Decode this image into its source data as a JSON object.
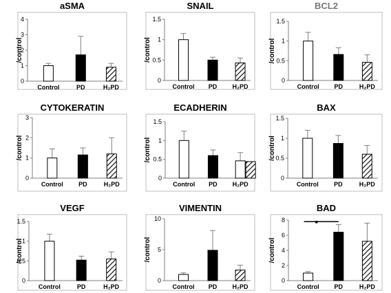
{
  "chart_data": [
    {
      "type": "bar",
      "title": "aSMA",
      "ylabel": "/control",
      "categories": [
        "Control",
        "PD",
        "H₂PD"
      ],
      "values": [
        1.0,
        1.7,
        0.9
      ],
      "errors": [
        0.15,
        1.2,
        0.25
      ],
      "yticks": [
        "0",
        "1",
        "2",
        "3",
        "4"
      ],
      "ylim": [
        0,
        4
      ],
      "fills": [
        "white",
        "black",
        "hatched"
      ],
      "significance": ""
    },
    {
      "type": "bar",
      "title": "SNAIL",
      "ylabel": "/control",
      "categories": [
        "Control",
        "PD",
        "H₂PD"
      ],
      "values": [
        1.0,
        0.5,
        0.43
      ],
      "errors": [
        0.15,
        0.07,
        0.12
      ],
      "yticks": [
        "0",
        "0.5",
        "1",
        "1.5"
      ],
      "ylim": [
        0,
        1.5
      ],
      "fills": [
        "white",
        "black",
        "hatched"
      ],
      "significance": ""
    },
    {
      "type": "bar",
      "title": "BCL2",
      "title_color": "#777777",
      "ylabel": "/control",
      "categories": [
        "Control",
        "PD",
        "H₂PD"
      ],
      "values": [
        1.0,
        0.66,
        0.46
      ],
      "errors": [
        0.22,
        0.17,
        0.19
      ],
      "yticks": [
        "0",
        "0.5",
        "1",
        "1.5"
      ],
      "ylim": [
        0,
        1.5
      ],
      "fills": [
        "white",
        "black",
        "hatched"
      ],
      "significance": ""
    },
    {
      "type": "bar",
      "title": "CYTOKERATIN",
      "ylabel": "/control",
      "categories": [
        "Control",
        "PD",
        "H₂PD"
      ],
      "values": [
        1.0,
        1.15,
        1.2
      ],
      "errors": [
        0.45,
        0.35,
        0.8
      ],
      "yticks": [
        "0",
        "1",
        "2",
        "3"
      ],
      "ylim": [
        0,
        3
      ],
      "fills": [
        "white",
        "black",
        "hatched"
      ],
      "significance": ""
    },
    {
      "type": "bar",
      "title": "ECADHERIN",
      "ylabel": "/control",
      "categories": [
        "Control",
        "PD",
        "H₂PD"
      ],
      "values": [
        1.0,
        0.6,
        0.46
      ],
      "errors": [
        0.25,
        0.15,
        0.22
      ],
      "extra_bar_value": 0.44,
      "yticks": [
        "0",
        "0.5",
        "1",
        "1.5"
      ],
      "ylim": [
        0,
        1.5
      ],
      "fills": [
        "white",
        "black",
        "white"
      ],
      "significance": ""
    },
    {
      "type": "bar",
      "title": "BAX",
      "ylabel": "/control",
      "categories": [
        "Control",
        "PD",
        "H₂PD"
      ],
      "values": [
        1.0,
        0.87,
        0.6
      ],
      "errors": [
        0.2,
        0.2,
        0.22
      ],
      "yticks": [
        "0",
        "0.5",
        "1",
        "1.5"
      ],
      "ylim": [
        0,
        1.5
      ],
      "fills": [
        "white",
        "black",
        "hatched"
      ],
      "significance": ""
    },
    {
      "type": "bar",
      "title": "VEGF",
      "ylabel": "/control",
      "categories": [
        "Control",
        "PD",
        "H₂PD"
      ],
      "values": [
        1.0,
        0.52,
        0.55
      ],
      "errors": [
        0.18,
        0.1,
        0.18
      ],
      "yticks": [
        "0",
        "0.5",
        "1",
        "1.5"
      ],
      "ylim": [
        0,
        1.5
      ],
      "fills": [
        "white",
        "black",
        "hatched"
      ],
      "significance": ""
    },
    {
      "type": "bar",
      "title": "VIMENTIN",
      "ylabel": "/control",
      "categories": [
        "Control",
        "PD",
        "H₂PD"
      ],
      "values": [
        1.0,
        4.9,
        1.7
      ],
      "errors": [
        0.25,
        3.2,
        0.8
      ],
      "yticks": [
        "0",
        "5",
        "10"
      ],
      "ylim": [
        0,
        10
      ],
      "fills": [
        "white",
        "black",
        "hatched"
      ],
      "significance": ""
    },
    {
      "type": "bar",
      "title": "BAD",
      "ylabel": "/control",
      "categories": [
        "Control",
        "PD",
        "H₂PD"
      ],
      "values": [
        1.0,
        6.4,
        5.2
      ],
      "errors": [
        0.2,
        1.0,
        2.4
      ],
      "yticks": [
        "0",
        "2",
        "4",
        "6",
        "8"
      ],
      "ylim": [
        0,
        8
      ],
      "fills": [
        "white",
        "black",
        "hatched"
      ],
      "significance": "■"
    }
  ]
}
